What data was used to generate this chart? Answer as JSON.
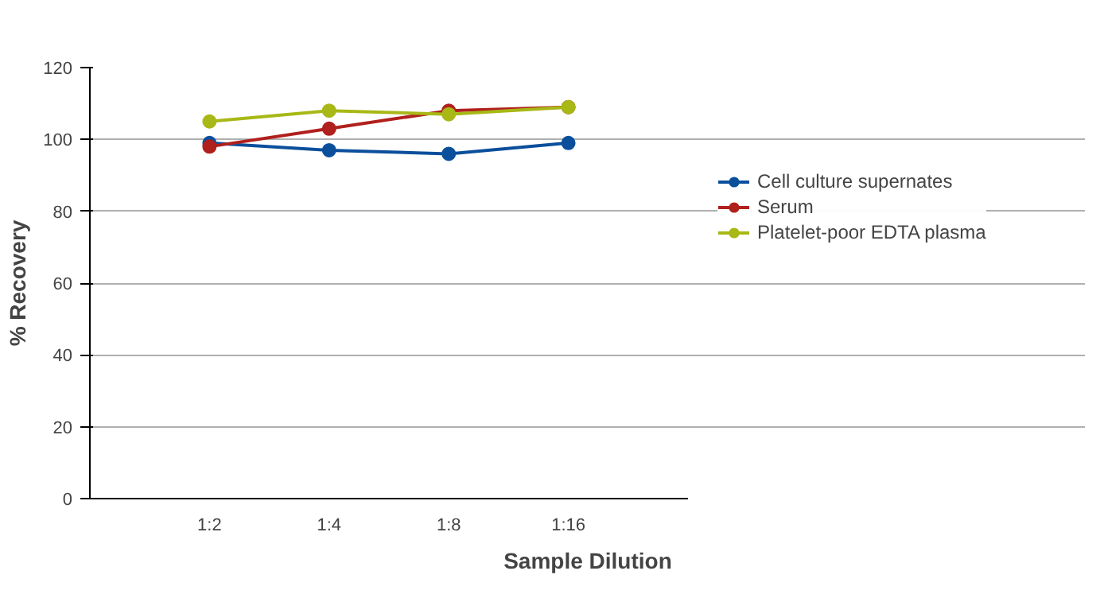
{
  "chart_data": {
    "type": "line",
    "xlabel": "Sample Dilution",
    "ylabel": "% Recovery",
    "categories": [
      "1:2",
      "1:4",
      "1:8",
      "1:16"
    ],
    "series": [
      {
        "name": "Cell culture supernates",
        "color": "#0b4f9c",
        "values": [
          99,
          97,
          96,
          99
        ]
      },
      {
        "name": "Serum",
        "color": "#b0201c",
        "values": [
          98,
          103,
          108,
          109
        ]
      },
      {
        "name": "Platelet-poor EDTA plasma",
        "color": "#a8b816",
        "values": [
          105,
          108,
          107,
          109
        ]
      }
    ],
    "ylim": [
      0,
      120
    ],
    "yticks": [
      0,
      20,
      40,
      60,
      80,
      100,
      120
    ],
    "grid": "y",
    "legend": "right",
    "marker": "circle",
    "line_style": "solid"
  }
}
